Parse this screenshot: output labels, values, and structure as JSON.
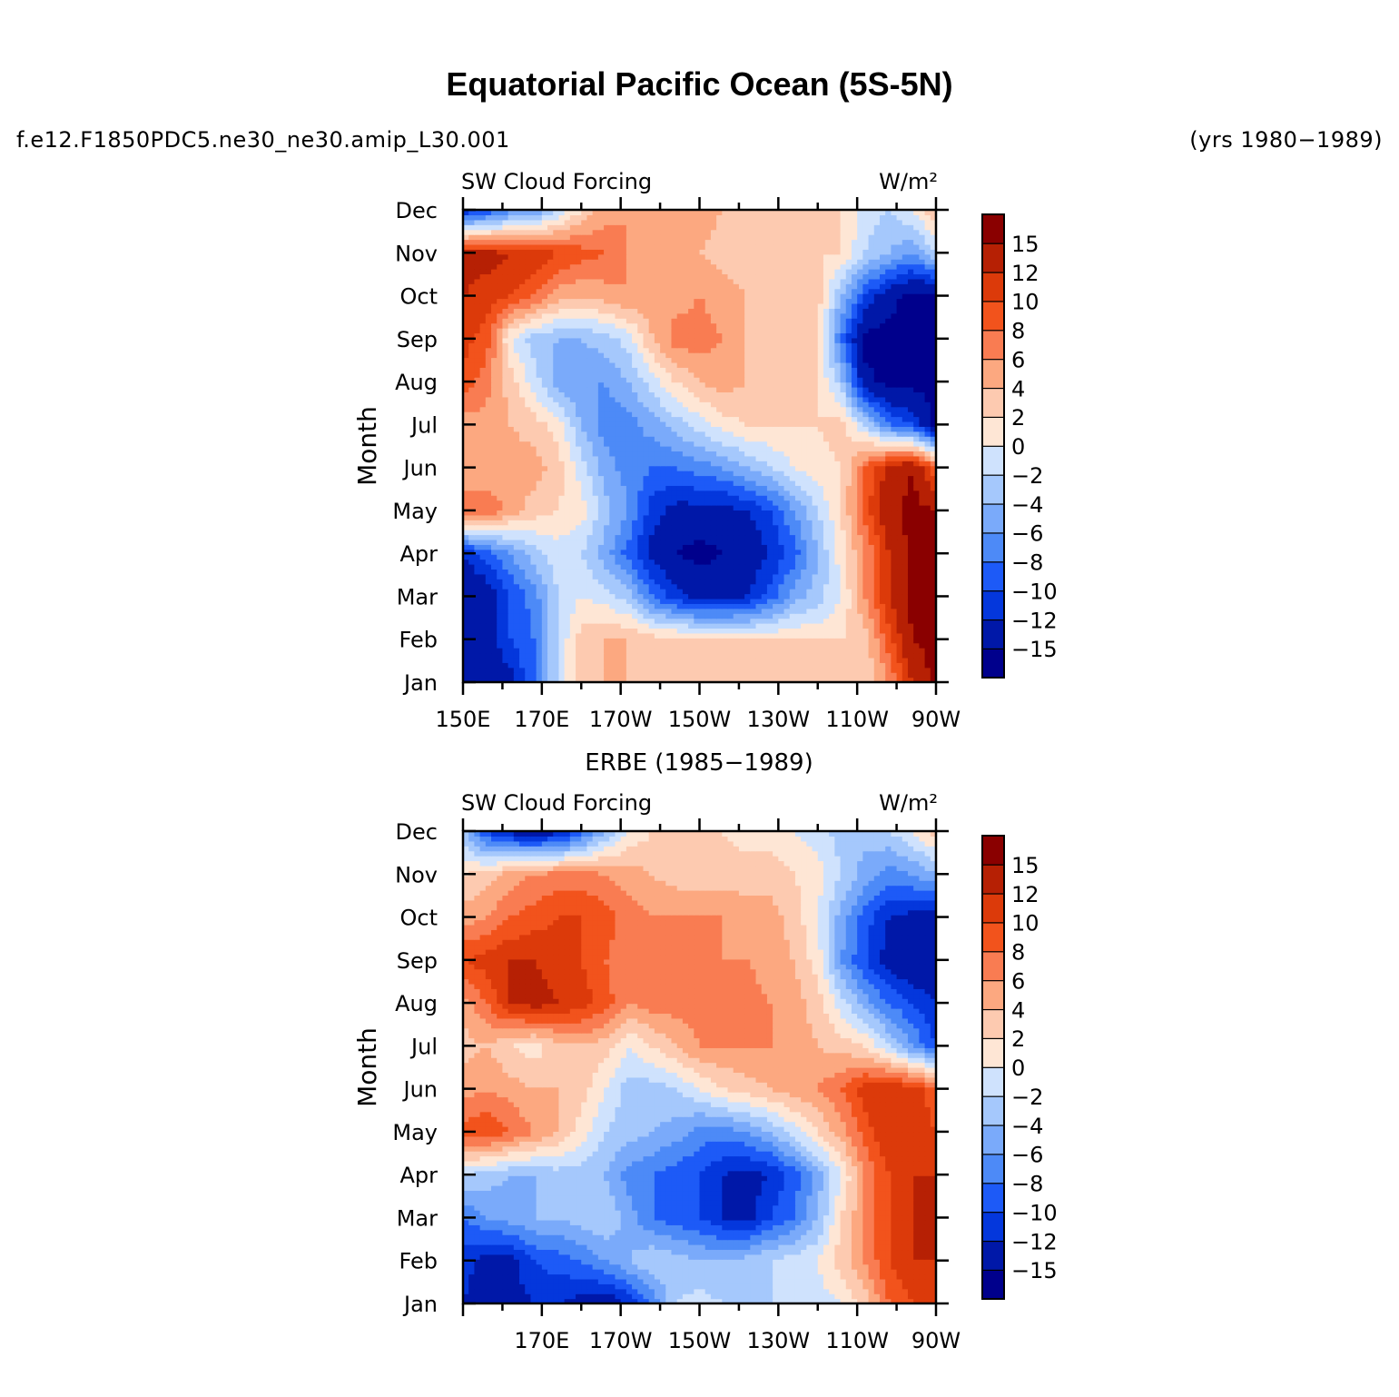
{
  "title": "Equatorial Pacific Ocean (5S-5N)",
  "case_id": "f.e12.F1850PDC5.ne30_ne30.amip_L30.001",
  "years": "(yrs 1980−1989)",
  "colors": {
    "levels": [
      "#00008c",
      "#0018a8",
      "#0437dc",
      "#1d5af7",
      "#4d8af7",
      "#7aaafa",
      "#a5c8fc",
      "#cfe2fd",
      "#fee6d5",
      "#fdcab0",
      "#fca880",
      "#f97c52",
      "#f2531c",
      "#dc3a0a",
      "#b62004",
      "#8a0000"
    ]
  },
  "chart_data": [
    {
      "type": "heatmap",
      "panel_title": "",
      "left_label": "SW Cloud Forcing",
      "right_label": "W/m²",
      "ylabel": "Month",
      "y_ticks": [
        "Jan",
        "Feb",
        "Mar",
        "Apr",
        "May",
        "Jun",
        "Jul",
        "Aug",
        "Sep",
        "Oct",
        "Nov",
        "Dec"
      ],
      "x_ticks": [
        "150E",
        "170E",
        "170W",
        "150W",
        "130W",
        "110W",
        "90W"
      ],
      "x_range": [
        "150E",
        "90W"
      ],
      "colorbar_labels": [
        "15",
        "12",
        "10",
        "8",
        "6",
        "4",
        "2",
        "0",
        "−2",
        "−4",
        "−6",
        "−8",
        "−10",
        "−12",
        "−15"
      ],
      "grid": [
        [
          -15,
          -15,
          -13,
          -8,
          -2,
          3,
          4,
          4,
          3,
          3,
          2,
          2,
          3,
          3,
          3,
          3,
          2,
          2,
          6,
          12,
          16
        ],
        [
          -15,
          -13,
          -10,
          -8,
          -2,
          3,
          4,
          4,
          3,
          3,
          2,
          2,
          2,
          2,
          2,
          2,
          2,
          3,
          9,
          15,
          16
        ],
        [
          -15,
          -14,
          -10,
          -7,
          -2,
          0,
          -1,
          -3,
          -8,
          -11,
          -13,
          -13,
          -12,
          -9,
          -5,
          -3,
          0,
          6,
          12,
          16,
          16
        ],
        [
          -12,
          -9,
          -6,
          -3,
          -1,
          -2,
          -5,
          -9,
          -13,
          -15,
          -16,
          -15,
          -14,
          -12,
          -9,
          -4,
          1,
          6,
          12,
          16,
          16
        ],
        [
          8,
          8,
          5,
          3,
          2,
          1,
          -3,
          -6,
          -11,
          -13,
          -13,
          -13,
          -12,
          -10,
          -6,
          -2,
          2,
          9,
          14,
          16,
          15
        ],
        [
          4,
          4,
          5,
          5,
          3,
          -1,
          -5,
          -7,
          -8,
          -8,
          -7,
          -6,
          -4,
          -2,
          0,
          1,
          2,
          8,
          13,
          15,
          8
        ],
        [
          5,
          5,
          4,
          3,
          1,
          -4,
          -7,
          -7,
          -5,
          -3,
          -1,
          1,
          2,
          2,
          2,
          2,
          3,
          -2,
          -8,
          -10,
          -16
        ],
        [
          9,
          7,
          3,
          -1,
          -5,
          -6,
          -6,
          -4,
          -1,
          2,
          4,
          5,
          4,
          3,
          3,
          2,
          -3,
          -14,
          -16,
          -16,
          -16
        ],
        [
          11,
          9,
          0,
          -3,
          -4,
          -4,
          -3,
          -1,
          4,
          7,
          7,
          6,
          4,
          3,
          3,
          2,
          -8,
          -16,
          -16,
          -16,
          -16
        ],
        [
          12,
          11,
          10,
          8,
          5,
          4,
          5,
          6,
          5,
          5,
          6,
          5,
          4,
          3,
          3,
          3,
          -4,
          -10,
          -14,
          -16,
          -16
        ],
        [
          13,
          13,
          12,
          12,
          10,
          9,
          8,
          6,
          5,
          4,
          4,
          3,
          3,
          3,
          2,
          2,
          2,
          -2,
          -4,
          -6,
          -2
        ],
        [
          -12,
          -10,
          -7,
          -6,
          -2,
          2,
          5,
          6,
          6,
          6,
          5,
          4,
          3,
          3,
          3,
          3,
          2,
          -1,
          -2,
          0,
          4
        ]
      ]
    },
    {
      "type": "heatmap",
      "panel_title": "ERBE (1985−1989)",
      "left_label": "SW Cloud Forcing",
      "right_label": "W/m²",
      "ylabel": "Month",
      "y_ticks": [
        "Jan",
        "Feb",
        "Mar",
        "Apr",
        "May",
        "Jun",
        "Jul",
        "Aug",
        "Sep",
        "Oct",
        "Nov",
        "Dec"
      ],
      "x_ticks": [
        "170E",
        "170W",
        "150W",
        "130W",
        "110W",
        "90W"
      ],
      "x_range": [
        "150E",
        "90W"
      ],
      "colorbar_labels": [
        "15",
        "12",
        "10",
        "8",
        "6",
        "4",
        "2",
        "0",
        "−2",
        "−4",
        "−6",
        "−8",
        "−10",
        "−12",
        "−15"
      ],
      "grid": [
        [
          -12,
          -14,
          -13,
          -12,
          -12,
          -13,
          -14,
          -12,
          -8,
          -2,
          -1,
          -2,
          -2,
          -2,
          -2,
          -1,
          0,
          3,
          8,
          10,
          11
        ],
        [
          -11,
          -13,
          -13,
          -10,
          -9,
          -8,
          -6,
          -4,
          -2,
          -3,
          -4,
          -4,
          -3,
          -2,
          -1,
          0,
          3,
          6,
          10,
          12,
          12
        ],
        [
          -8,
          -6,
          -5,
          -4,
          -4,
          -3,
          -2,
          -5,
          -8,
          -9,
          -10,
          -12,
          -13,
          -10,
          -8,
          -4,
          2,
          6,
          10,
          12,
          14
        ],
        [
          -2,
          -3,
          -4,
          -4,
          -3,
          -3,
          -4,
          -7,
          -8,
          -9,
          -10,
          -12,
          -13,
          -12,
          -9,
          -5,
          0,
          6,
          10,
          12,
          12
        ],
        [
          9,
          10,
          8,
          6,
          4,
          1,
          -2,
          -3,
          -4,
          -5,
          -7,
          -7,
          -6,
          -4,
          -1,
          2,
          5,
          9,
          12,
          11,
          10
        ],
        [
          5,
          6,
          5,
          4,
          4,
          3,
          0,
          -3,
          -3,
          -2,
          0,
          2,
          3,
          4,
          5,
          6,
          8,
          11,
          12,
          11,
          9
        ],
        [
          3,
          4,
          2,
          1,
          3,
          4,
          3,
          0,
          2,
          4,
          6,
          6,
          6,
          6,
          5,
          4,
          3,
          2,
          -2,
          -6,
          -10
        ],
        [
          5,
          8,
          12,
          13,
          12,
          11,
          9,
          6,
          7,
          7,
          7,
          8,
          7,
          6,
          5,
          3,
          -1,
          -5,
          -8,
          -10,
          -12
        ],
        [
          10,
          11,
          12,
          12,
          11,
          10,
          8,
          7,
          7,
          6,
          6,
          6,
          6,
          5,
          4,
          1,
          -6,
          -10,
          -13,
          -15,
          -15
        ],
        [
          5,
          6,
          8,
          9,
          10,
          10,
          9,
          7,
          6,
          6,
          6,
          6,
          5,
          5,
          3,
          0,
          -5,
          -9,
          -12,
          -13,
          -13
        ],
        [
          2,
          3,
          5,
          6,
          7,
          7,
          6,
          5,
          4,
          3,
          3,
          3,
          3,
          3,
          2,
          1,
          -2,
          -5,
          -7,
          -6,
          -4
        ],
        [
          -3,
          -10,
          -13,
          -14,
          -13,
          -9,
          -4,
          0,
          2,
          2,
          2,
          2,
          1,
          1,
          0,
          -1,
          -3,
          -3,
          -2,
          0,
          3
        ]
      ]
    }
  ]
}
